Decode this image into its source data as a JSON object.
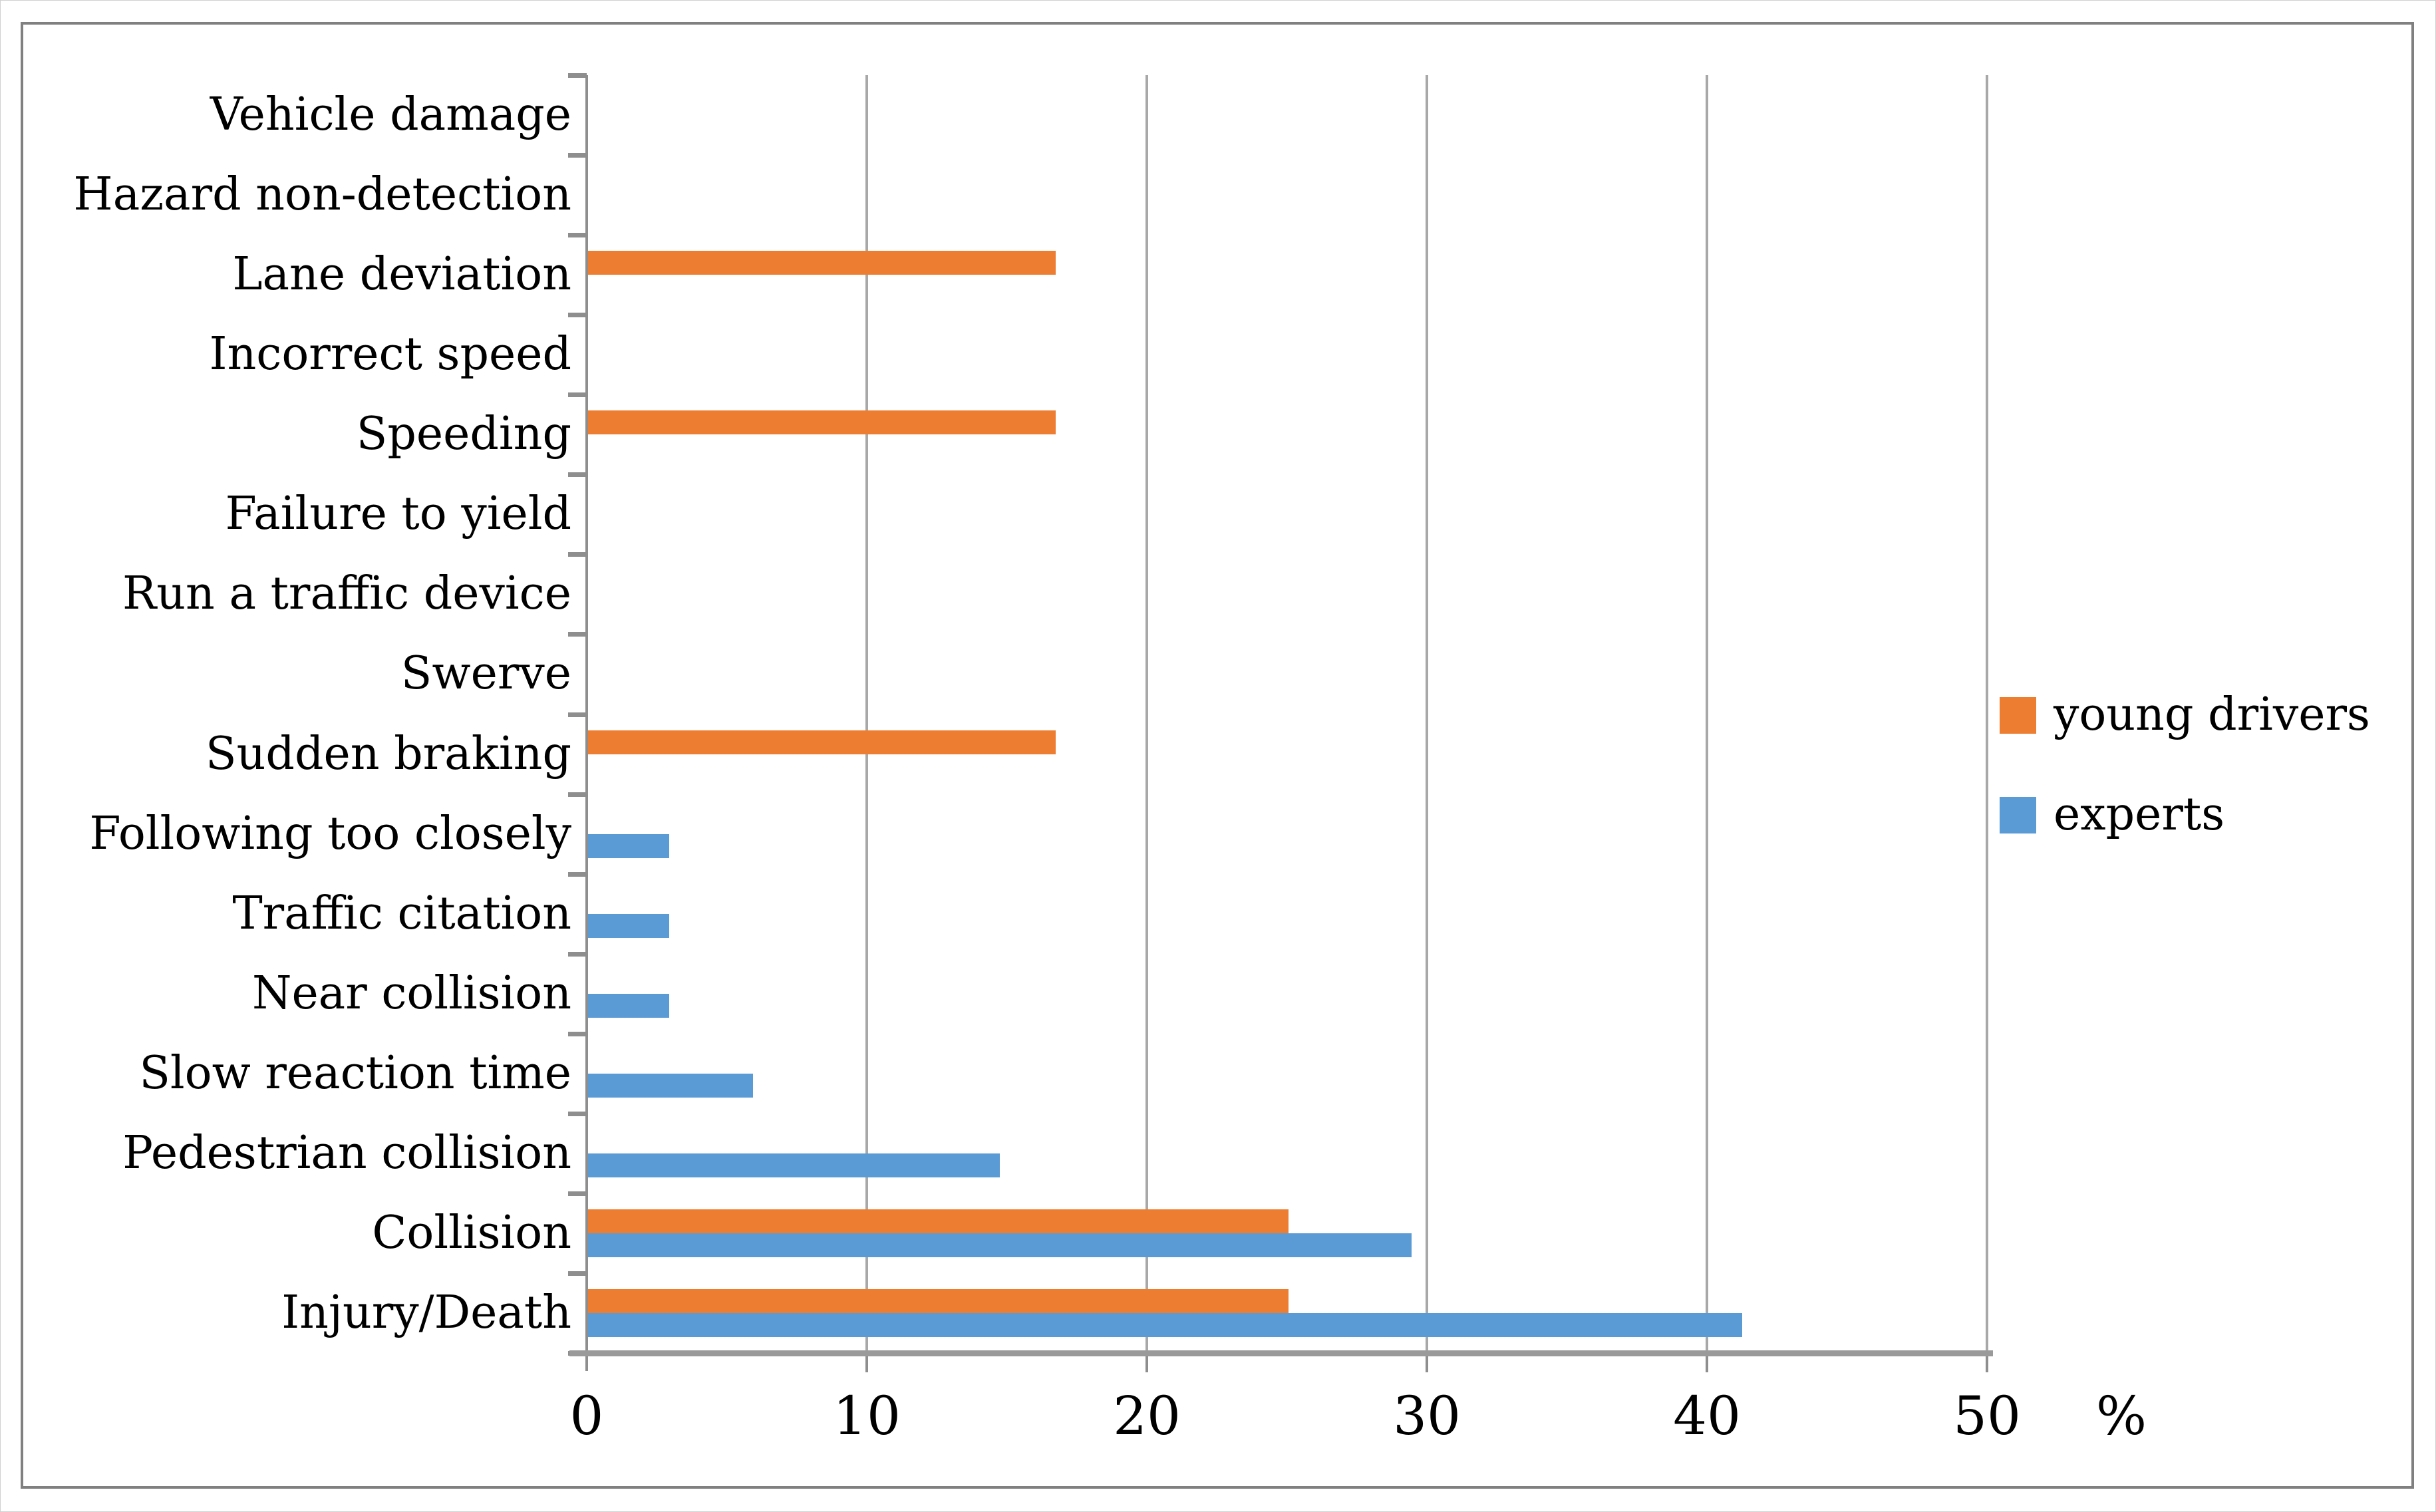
{
  "legend": {
    "items": [
      {
        "label": "young drivers",
        "color": "#ED7D31"
      },
      {
        "label": "experts",
        "color": "#5B9BD5"
      }
    ]
  },
  "axis": {
    "unit_label": "%"
  },
  "colors": {
    "young_drivers": "#ED7D31",
    "experts": "#5B9BD5",
    "gridline": "#A8A8A8",
    "axis_line": "#8E8E8E",
    "baseline": "#9A9A9A",
    "frame_border": "#808080"
  },
  "chart_data": {
    "type": "bar",
    "orientation": "horizontal",
    "title": "",
    "xlabel": "%",
    "ylabel": "",
    "xlim": [
      0,
      50
    ],
    "xticks": [
      0,
      10,
      20,
      30,
      40,
      50
    ],
    "grid": true,
    "legend_position": "right",
    "categories": [
      "Vehicle damage",
      "Hazard non-detection",
      "Lane deviation",
      "Incorrect speed",
      "Speeding",
      "Failure to yield",
      "Run a traffic device",
      "Swerve",
      "Sudden braking",
      "Following too closely",
      "Traffic citation",
      "Near collision",
      "Slow reaction time",
      "Pedestrian collision",
      "Collision",
      "Injury/Death"
    ],
    "series": [
      {
        "name": "young drivers",
        "color": "#ED7D31",
        "values": [
          0,
          0,
          16.7,
          0,
          16.7,
          0,
          0,
          0,
          16.7,
          0,
          0,
          0,
          0,
          0,
          25,
          25
        ]
      },
      {
        "name": "experts",
        "color": "#5B9BD5",
        "values": [
          0,
          0,
          0,
          0,
          0,
          0,
          0,
          0,
          0,
          2.9,
          2.9,
          2.9,
          5.9,
          14.7,
          29.4,
          41.2
        ]
      }
    ]
  }
}
